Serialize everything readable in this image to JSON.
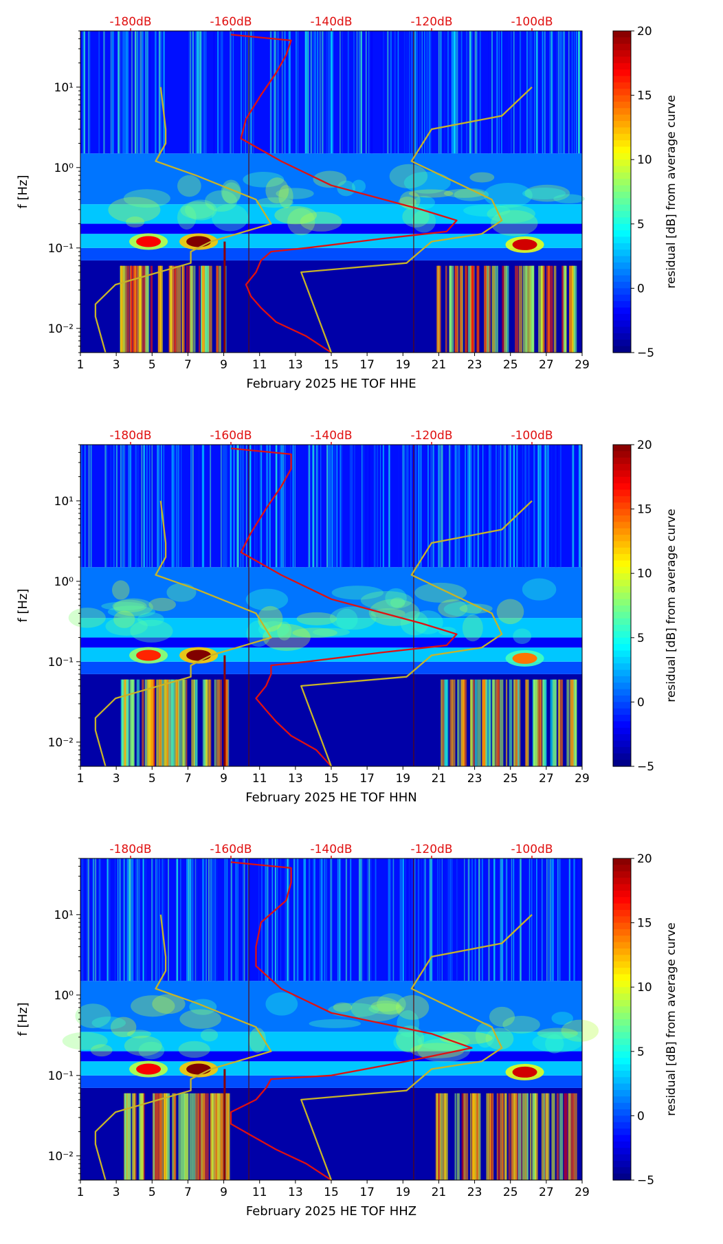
{
  "chart_data": [
    {
      "type": "heatmap",
      "title": "",
      "xlabel": "February 2025 HE TOF  HHE",
      "ylabel": "f [Hz]",
      "x_range": [
        1,
        29
      ],
      "x_ticks": [
        "1",
        "3",
        "5",
        "7",
        "9",
        "11",
        "13",
        "15",
        "17",
        "19",
        "21",
        "23",
        "25",
        "27",
        "29"
      ],
      "y_range_hz": [
        0.005,
        50
      ],
      "y_tick_labels": [
        "10⁻²",
        "10⁻¹",
        "10⁰",
        "10¹"
      ],
      "top_axis": {
        "labels": [
          "-180dB",
          "-160dB",
          "-140dB",
          "-120dB",
          "-100dB"
        ],
        "values_db": [
          -180,
          -160,
          -140,
          -120,
          -100
        ],
        "range_db": [
          -190,
          -90
        ]
      },
      "colorbar": {
        "label": "residual [dB] from average curve",
        "min": -5,
        "max": 20,
        "ticks": [
          "−5",
          "0",
          "5",
          "10",
          "15",
          "20"
        ],
        "colormap": "jet"
      },
      "series": [
        {
          "name": "average PSD curve",
          "color": "#e01010",
          "points_db_hz": [
            [
              -140,
              0.005
            ],
            [
              -145,
              0.008
            ],
            [
              -151,
              0.012
            ],
            [
              -154,
              0.018
            ],
            [
              -156,
              0.025
            ],
            [
              -157,
              0.035
            ],
            [
              -155,
              0.05
            ],
            [
              -154,
              0.07
            ],
            [
              -152,
              0.09
            ],
            [
              -145,
              0.1
            ],
            [
              -130,
              0.13
            ],
            [
              -117,
              0.16
            ],
            [
              -115,
              0.22
            ],
            [
              -122,
              0.3
            ],
            [
              -140,
              0.6
            ],
            [
              -150,
              1.2
            ],
            [
              -158,
              2.3
            ],
            [
              -157,
              4
            ],
            [
              -154,
              8
            ],
            [
              -151,
              15
            ],
            [
              -149,
              25
            ],
            [
              -148,
              38
            ],
            [
              -160,
              45
            ]
          ]
        },
        {
          "name": "NHNM",
          "color": "#c8b428",
          "points_db_hz": [
            [
              -100,
              10
            ],
            [
              -106,
              4.4
            ],
            [
              -120,
              3
            ],
            [
              -124,
              1.2
            ],
            [
              -108,
              0.4
            ],
            [
              -106,
              0.22
            ],
            [
              -110,
              0.15
            ],
            [
              -120,
              0.12
            ],
            [
              -125,
              0.065
            ],
            [
              -146,
              0.05
            ],
            [
              -140,
              0.005
            ]
          ]
        },
        {
          "name": "NLNM",
          "color": "#c8b428",
          "points_db_hz": [
            [
              -174,
              10
            ],
            [
              -173,
              3
            ],
            [
              -173,
              2
            ],
            [
              -175,
              1.2
            ],
            [
              -167,
              0.8
            ],
            [
              -155,
              0.4
            ],
            [
              -152,
              0.2
            ],
            [
              -164,
              0.12
            ],
            [
              -168,
              0.09
            ],
            [
              -168,
              0.065
            ],
            [
              -183,
              0.035
            ],
            [
              -187,
              0.02
            ],
            [
              -187,
              0.014
            ],
            [
              -185,
              0.005
            ]
          ]
        }
      ],
      "events": [
        {
          "day": 4.8,
          "f": 0.12,
          "level_db": 17
        },
        {
          "day": 7.6,
          "f": 0.12,
          "level_db": 20
        },
        {
          "day": 25.8,
          "f": 0.11,
          "level_db": 18
        }
      ]
    },
    {
      "type": "heatmap",
      "title": "",
      "xlabel": "February 2025 HE TOF  HHN",
      "ylabel": "f [Hz]",
      "x_range": [
        1,
        29
      ],
      "x_ticks": [
        "1",
        "3",
        "5",
        "7",
        "9",
        "11",
        "13",
        "15",
        "17",
        "19",
        "21",
        "23",
        "25",
        "27",
        "29"
      ],
      "y_range_hz": [
        0.005,
        50
      ],
      "y_tick_labels": [
        "10⁻²",
        "10⁻¹",
        "10⁰",
        "10¹"
      ],
      "top_axis": {
        "labels": [
          "-180dB",
          "-160dB",
          "-140dB",
          "-120dB",
          "-100dB"
        ],
        "values_db": [
          -180,
          -160,
          -140,
          -120,
          -100
        ],
        "range_db": [
          -190,
          -90
        ]
      },
      "colorbar": {
        "label": "residual [dB] from average curve",
        "min": -5,
        "max": 20,
        "ticks": [
          "−5",
          "0",
          "5",
          "10",
          "15",
          "20"
        ],
        "colormap": "jet"
      },
      "series": [
        {
          "name": "average PSD curve",
          "color": "#e01010",
          "points_db_hz": [
            [
              -140,
              0.005
            ],
            [
              -143,
              0.008
            ],
            [
              -148,
              0.012
            ],
            [
              -151,
              0.018
            ],
            [
              -153,
              0.025
            ],
            [
              -155,
              0.035
            ],
            [
              -153,
              0.05
            ],
            [
              -152,
              0.07
            ],
            [
              -152,
              0.09
            ],
            [
              -145,
              0.1
            ],
            [
              -130,
              0.13
            ],
            [
              -117,
              0.16
            ],
            [
              -115,
              0.22
            ],
            [
              -122,
              0.3
            ],
            [
              -140,
              0.6
            ],
            [
              -150,
              1.2
            ],
            [
              -158,
              2.3
            ],
            [
              -156,
              4
            ],
            [
              -153,
              8
            ],
            [
              -150,
              15
            ],
            [
              -148,
              25
            ],
            [
              -148,
              38
            ],
            [
              -160,
              45
            ]
          ]
        },
        {
          "name": "NHNM",
          "color": "#c8b428",
          "points_db_hz": [
            [
              -100,
              10
            ],
            [
              -106,
              4.4
            ],
            [
              -120,
              3
            ],
            [
              -124,
              1.2
            ],
            [
              -108,
              0.4
            ],
            [
              -106,
              0.22
            ],
            [
              -110,
              0.15
            ],
            [
              -120,
              0.12
            ],
            [
              -125,
              0.065
            ],
            [
              -146,
              0.05
            ],
            [
              -140,
              0.005
            ]
          ]
        },
        {
          "name": "NLNM",
          "color": "#c8b428",
          "points_db_hz": [
            [
              -174,
              10
            ],
            [
              -173,
              3
            ],
            [
              -173,
              2
            ],
            [
              -175,
              1.2
            ],
            [
              -167,
              0.8
            ],
            [
              -155,
              0.4
            ],
            [
              -152,
              0.2
            ],
            [
              -164,
              0.12
            ],
            [
              -168,
              0.09
            ],
            [
              -168,
              0.065
            ],
            [
              -183,
              0.035
            ],
            [
              -187,
              0.02
            ],
            [
              -187,
              0.014
            ],
            [
              -185,
              0.005
            ]
          ]
        }
      ],
      "events": [
        {
          "day": 4.8,
          "f": 0.12,
          "level_db": 16
        },
        {
          "day": 7.6,
          "f": 0.12,
          "level_db": 20
        },
        {
          "day": 25.8,
          "f": 0.11,
          "level_db": 14
        }
      ]
    },
    {
      "type": "heatmap",
      "title": "",
      "xlabel": "February 2025 HE TOF  HHZ",
      "ylabel": "f [Hz]",
      "x_range": [
        1,
        29
      ],
      "x_ticks": [
        "1",
        "3",
        "5",
        "7",
        "9",
        "11",
        "13",
        "15",
        "17",
        "19",
        "21",
        "23",
        "25",
        "27",
        "29"
      ],
      "y_range_hz": [
        0.005,
        50
      ],
      "y_tick_labels": [
        "10⁻²",
        "10⁻¹",
        "10⁰",
        "10¹"
      ],
      "top_axis": {
        "labels": [
          "-180dB",
          "-160dB",
          "-140dB",
          "-120dB",
          "-100dB"
        ],
        "values_db": [
          -180,
          -160,
          -140,
          -120,
          -100
        ],
        "range_db": [
          -190,
          -90
        ]
      },
      "colorbar": {
        "label": "residual [dB] from average curve",
        "min": -5,
        "max": 20,
        "ticks": [
          "−5",
          "0",
          "5",
          "10",
          "15",
          "20"
        ],
        "colormap": "jet"
      },
      "series": [
        {
          "name": "average PSD curve",
          "color": "#e01010",
          "points_db_hz": [
            [
              -140,
              0.005
            ],
            [
              -145,
              0.008
            ],
            [
              -151,
              0.012
            ],
            [
              -156,
              0.018
            ],
            [
              -160,
              0.025
            ],
            [
              -160,
              0.035
            ],
            [
              -155,
              0.05
            ],
            [
              -153,
              0.07
            ],
            [
              -152,
              0.09
            ],
            [
              -140,
              0.1
            ],
            [
              -125,
              0.15
            ],
            [
              -112,
              0.22
            ],
            [
              -120,
              0.33
            ],
            [
              -140,
              0.6
            ],
            [
              -150,
              1.2
            ],
            [
              -155,
              2.3
            ],
            [
              -155,
              4
            ],
            [
              -154,
              8
            ],
            [
              -149,
              15
            ],
            [
              -148,
              25
            ],
            [
              -148,
              38
            ],
            [
              -160,
              45
            ]
          ]
        },
        {
          "name": "NHNM",
          "color": "#c8b428",
          "points_db_hz": [
            [
              -100,
              10
            ],
            [
              -106,
              4.4
            ],
            [
              -120,
              3
            ],
            [
              -124,
              1.2
            ],
            [
              -108,
              0.4
            ],
            [
              -106,
              0.22
            ],
            [
              -110,
              0.15
            ],
            [
              -120,
              0.12
            ],
            [
              -125,
              0.065
            ],
            [
              -146,
              0.05
            ],
            [
              -140,
              0.005
            ]
          ]
        },
        {
          "name": "NLNM",
          "color": "#c8b428",
          "points_db_hz": [
            [
              -174,
              10
            ],
            [
              -173,
              3
            ],
            [
              -173,
              2
            ],
            [
              -175,
              1.2
            ],
            [
              -167,
              0.8
            ],
            [
              -155,
              0.4
            ],
            [
              -152,
              0.2
            ],
            [
              -164,
              0.12
            ],
            [
              -168,
              0.09
            ],
            [
              -168,
              0.065
            ],
            [
              -183,
              0.035
            ],
            [
              -187,
              0.02
            ],
            [
              -187,
              0.014
            ],
            [
              -185,
              0.005
            ]
          ]
        }
      ],
      "events": [
        {
          "day": 4.8,
          "f": 0.12,
          "level_db": 17
        },
        {
          "day": 7.6,
          "f": 0.12,
          "level_db": 20
        },
        {
          "day": 25.8,
          "f": 0.11,
          "level_db": 18
        }
      ]
    }
  ]
}
